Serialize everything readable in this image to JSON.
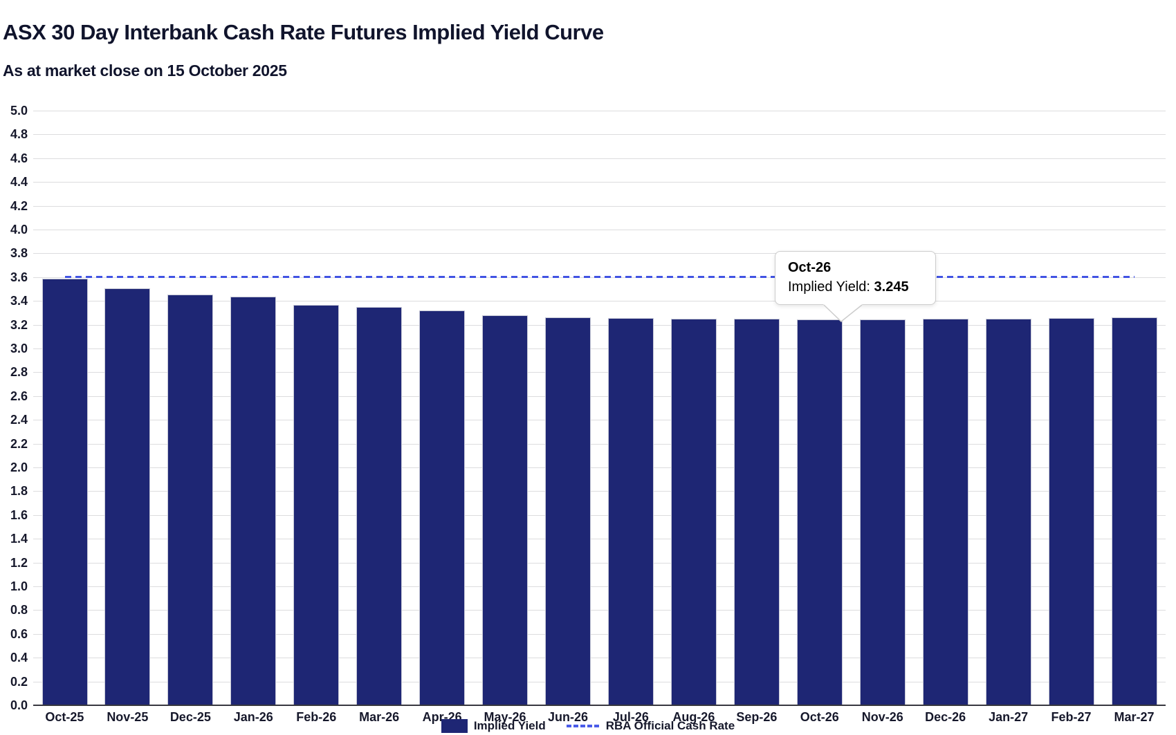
{
  "header": {
    "title": "ASX 30 Day Interbank Cash Rate Futures Implied Yield Curve",
    "subtitle": "As at market close on 15 October 2025"
  },
  "chart_data": {
    "type": "bar",
    "title": "ASX 30 Day Interbank Cash Rate Futures Implied Yield Curve",
    "subtitle": "As at market close on 15 October 2025",
    "categories": [
      "Oct-25",
      "Nov-25",
      "Dec-25",
      "Jan-26",
      "Feb-26",
      "Mar-26",
      "Apr-26",
      "May-26",
      "Jun-26",
      "Jul-26",
      "Aug-26",
      "Sep-26",
      "Oct-26",
      "Nov-26",
      "Dec-26",
      "Jan-27",
      "Feb-27",
      "Mar-27"
    ],
    "series": [
      {
        "name": "Implied Yield",
        "type": "bar",
        "color": "#1e2674",
        "values": [
          3.59,
          3.505,
          3.455,
          3.435,
          3.365,
          3.35,
          3.32,
          3.28,
          3.26,
          3.255,
          3.25,
          3.25,
          3.245,
          3.245,
          3.25,
          3.25,
          3.255,
          3.26
        ]
      },
      {
        "name": "RBA Official Cash Rate",
        "type": "dashed-line",
        "color": "#4153e3",
        "value": 3.6
      }
    ],
    "xlabel": "",
    "ylabel": "",
    "ylim": [
      0.0,
      5.0
    ],
    "ytick_step": 0.2,
    "grid": "horizontal",
    "legend_position": "bottom"
  },
  "tooltip": {
    "title": "Oct-26",
    "label": "Implied Yield: ",
    "value": "3.245",
    "category_index": 12
  },
  "legend": {
    "items": [
      {
        "label": "Implied Yield",
        "swatch": "bar",
        "color": "#1e2674"
      },
      {
        "label": "RBA Official Cash Rate",
        "swatch": "dashed-line",
        "color": "#4153e3"
      }
    ]
  },
  "colors": {
    "bar": "#1e2674",
    "bar_border": "#c6c8d6",
    "dashed_line": "#4153e3",
    "grid": "#dcdcde",
    "axis": "#37373f",
    "text": "#10142c"
  }
}
